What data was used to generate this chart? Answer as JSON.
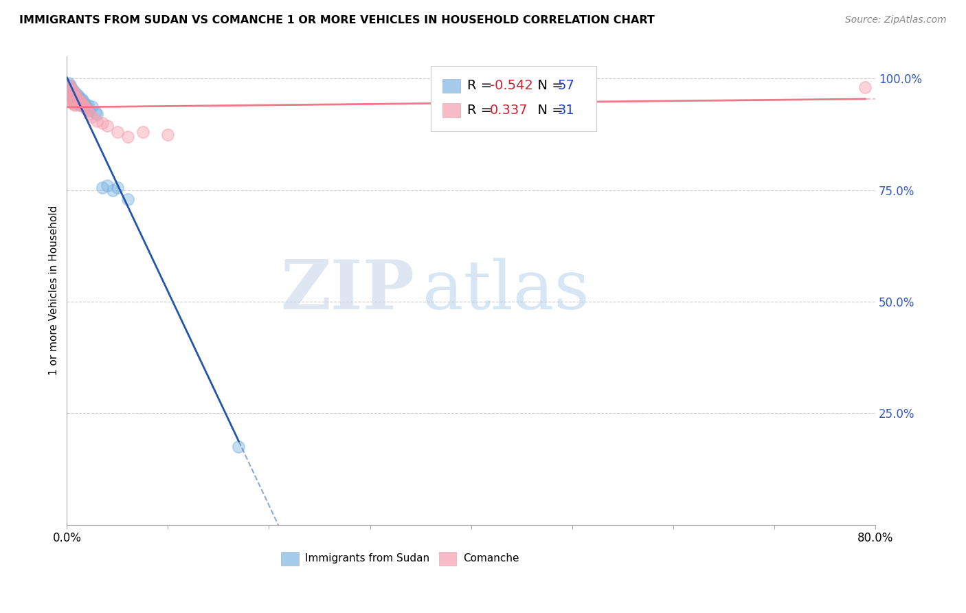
{
  "title": "IMMIGRANTS FROM SUDAN VS COMANCHE 1 OR MORE VEHICLES IN HOUSEHOLD CORRELATION CHART",
  "source": "Source: ZipAtlas.com",
  "ylabel": "1 or more Vehicles in Household",
  "legend_label1": "Immigrants from Sudan",
  "legend_label2": "Comanche",
  "r1": -0.542,
  "n1": 57,
  "r2": 0.337,
  "n2": 31,
  "color_blue": "#7EB5E0",
  "color_pink": "#F4A0B0",
  "color_blue_line": "#2255AA",
  "color_pink_line": "#EE7788",
  "xlim": [
    0.0,
    0.8
  ],
  "ylim": [
    0.0,
    1.05
  ],
  "xtick_positions": [
    0.0,
    0.1,
    0.2,
    0.3,
    0.4,
    0.5,
    0.6,
    0.7,
    0.8
  ],
  "xtick_labels": [
    "0.0%",
    "",
    "",
    "",
    "",
    "",
    "",
    "",
    "80.0%"
  ],
  "ytick_positions": [
    0.25,
    0.5,
    0.75,
    1.0
  ],
  "ytick_labels": [
    "25.0%",
    "50.0%",
    "75.0%",
    "100.0%"
  ],
  "watermark_zip": "ZIP",
  "watermark_atlas": "atlas",
  "sudan_x": [
    0.001,
    0.002,
    0.002,
    0.003,
    0.003,
    0.003,
    0.003,
    0.004,
    0.004,
    0.004,
    0.005,
    0.005,
    0.005,
    0.005,
    0.006,
    0.006,
    0.006,
    0.006,
    0.006,
    0.007,
    0.007,
    0.007,
    0.007,
    0.008,
    0.008,
    0.008,
    0.008,
    0.009,
    0.009,
    0.009,
    0.01,
    0.01,
    0.01,
    0.011,
    0.011,
    0.012,
    0.012,
    0.013,
    0.013,
    0.014,
    0.015,
    0.015,
    0.016,
    0.017,
    0.018,
    0.02,
    0.021,
    0.022,
    0.025,
    0.028,
    0.03,
    0.035,
    0.04,
    0.045,
    0.05,
    0.06,
    0.17
  ],
  "sudan_y": [
    0.985,
    0.99,
    0.98,
    0.985,
    0.975,
    0.97,
    0.965,
    0.98,
    0.975,
    0.965,
    0.975,
    0.97,
    0.965,
    0.96,
    0.975,
    0.97,
    0.965,
    0.96,
    0.955,
    0.97,
    0.965,
    0.958,
    0.95,
    0.968,
    0.96,
    0.955,
    0.948,
    0.965,
    0.958,
    0.948,
    0.963,
    0.955,
    0.945,
    0.96,
    0.95,
    0.958,
    0.948,
    0.955,
    0.94,
    0.948,
    0.955,
    0.942,
    0.95,
    0.945,
    0.942,
    0.935,
    0.94,
    0.928,
    0.938,
    0.925,
    0.92,
    0.755,
    0.76,
    0.75,
    0.755,
    0.73,
    0.175
  ],
  "comanche_x": [
    0.002,
    0.003,
    0.003,
    0.004,
    0.005,
    0.005,
    0.006,
    0.006,
    0.007,
    0.007,
    0.008,
    0.008,
    0.009,
    0.01,
    0.011,
    0.012,
    0.014,
    0.015,
    0.016,
    0.018,
    0.02,
    0.022,
    0.025,
    0.03,
    0.035,
    0.04,
    0.05,
    0.06,
    0.075,
    0.1,
    0.79
  ],
  "comanche_y": [
    0.985,
    0.96,
    0.98,
    0.955,
    0.975,
    0.95,
    0.965,
    0.945,
    0.968,
    0.942,
    0.96,
    0.94,
    0.955,
    0.958,
    0.95,
    0.945,
    0.948,
    0.94,
    0.942,
    0.935,
    0.93,
    0.92,
    0.915,
    0.905,
    0.9,
    0.895,
    0.88,
    0.87,
    0.88,
    0.875,
    0.98
  ]
}
